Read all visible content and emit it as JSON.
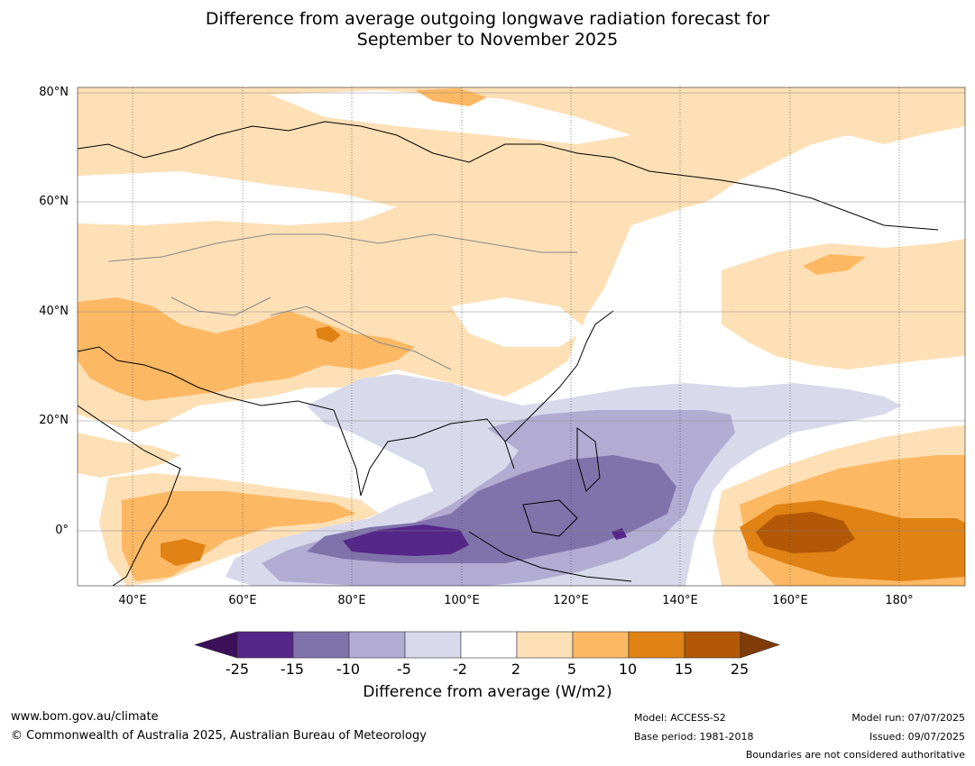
{
  "title": {
    "line1": "Difference from average outgoing longwave radiation forecast for",
    "line2": "September to November 2025"
  },
  "map": {
    "lat_labels": [
      "80°N",
      "60°N",
      "40°N",
      "20°N",
      "0°"
    ],
    "lon_labels": [
      "40°E",
      "60°E",
      "80°E",
      "100°E",
      "120°E",
      "140°E",
      "160°E",
      "180°"
    ]
  },
  "colorbar": {
    "ticks": [
      "-25",
      "-15",
      "-10",
      "-5",
      "-2",
      "2",
      "5",
      "10",
      "15",
      "25"
    ],
    "colors": [
      "#3b0f5a",
      "#542788",
      "#8073ac",
      "#b2abd2",
      "#d8daeb",
      "#ffffff",
      "#fee0b6",
      "#fdb863",
      "#e08214",
      "#b35806",
      "#7f3b08"
    ],
    "label": "Difference from average (W/m2)"
  },
  "footer": {
    "website": "www.bom.gov.au/climate",
    "copyright": "© Commonwealth of Australia 2025, Australian Bureau of Meteorology",
    "model": "Model: ACCESS-S2",
    "base_period": "Base period: 1981-2018",
    "model_run": "Model run: 07/07/2025",
    "issued": "Issued: 09/07/2025",
    "disclaimer": "Boundaries are not considered authoritative"
  }
}
